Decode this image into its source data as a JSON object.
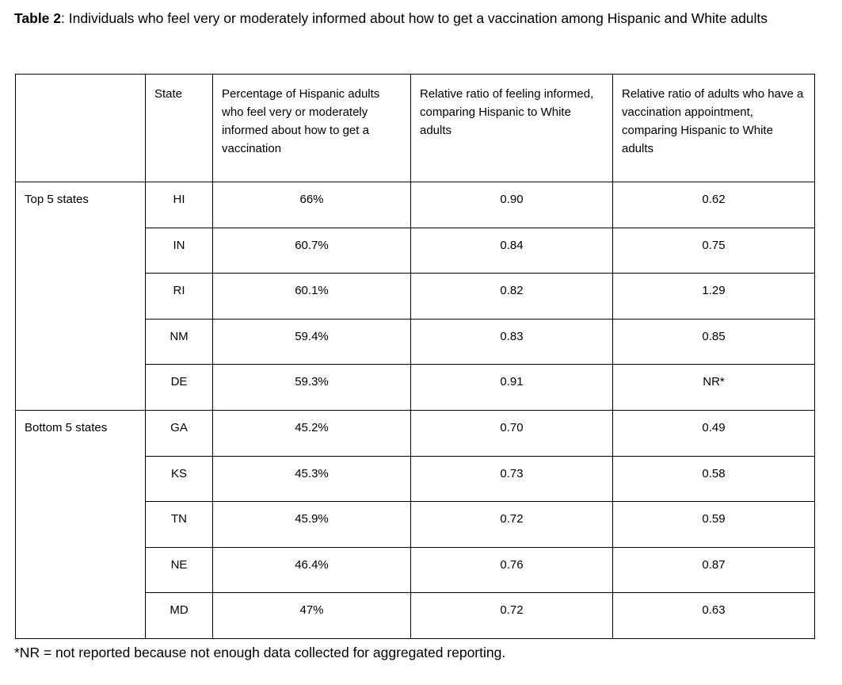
{
  "title": {
    "bold": "Table 2",
    "rest": ": Individuals who feel very or moderately informed about how to get a vaccination among Hispanic and White adults"
  },
  "table": {
    "headers": {
      "group": "",
      "state": "State",
      "pct": "Percentage of Hispanic adults who feel very or moderately informed about how to get a vaccination",
      "ratio_informed": "Relative ratio of feeling informed, comparing Hispanic to White adults",
      "ratio_appointment": "Relative ratio of adults who have a vaccination appointment, comparing Hispanic to White adults"
    },
    "groups": [
      {
        "label": "Top 5 states",
        "rows": [
          {
            "state": "HI",
            "pct": "66%",
            "ratio_informed": "0.90",
            "ratio_appointment": "0.62"
          },
          {
            "state": "IN",
            "pct": "60.7%",
            "ratio_informed": "0.84",
            "ratio_appointment": "0.75"
          },
          {
            "state": "RI",
            "pct": "60.1%",
            "ratio_informed": "0.82",
            "ratio_appointment": "1.29"
          },
          {
            "state": "NM",
            "pct": "59.4%",
            "ratio_informed": "0.83",
            "ratio_appointment": "0.85"
          },
          {
            "state": "DE",
            "pct": "59.3%",
            "ratio_informed": "0.91",
            "ratio_appointment": "NR*"
          }
        ]
      },
      {
        "label": "Bottom 5 states",
        "rows": [
          {
            "state": "GA",
            "pct": "45.2%",
            "ratio_informed": "0.70",
            "ratio_appointment": "0.49"
          },
          {
            "state": "KS",
            "pct": "45.3%",
            "ratio_informed": "0.73",
            "ratio_appointment": "0.58"
          },
          {
            "state": "TN",
            "pct": "45.9%",
            "ratio_informed": "0.72",
            "ratio_appointment": "0.59"
          },
          {
            "state": "NE",
            "pct": "46.4%",
            "ratio_informed": "0.76",
            "ratio_appointment": "0.87"
          },
          {
            "state": "MD",
            "pct": "47%",
            "ratio_informed": "0.72",
            "ratio_appointment": "0.63"
          }
        ]
      }
    ]
  },
  "footnote": "*NR = not reported because not enough data collected for aggregated reporting.",
  "colors": {
    "text": "#000000",
    "border": "#000000",
    "background": "#ffffff"
  }
}
